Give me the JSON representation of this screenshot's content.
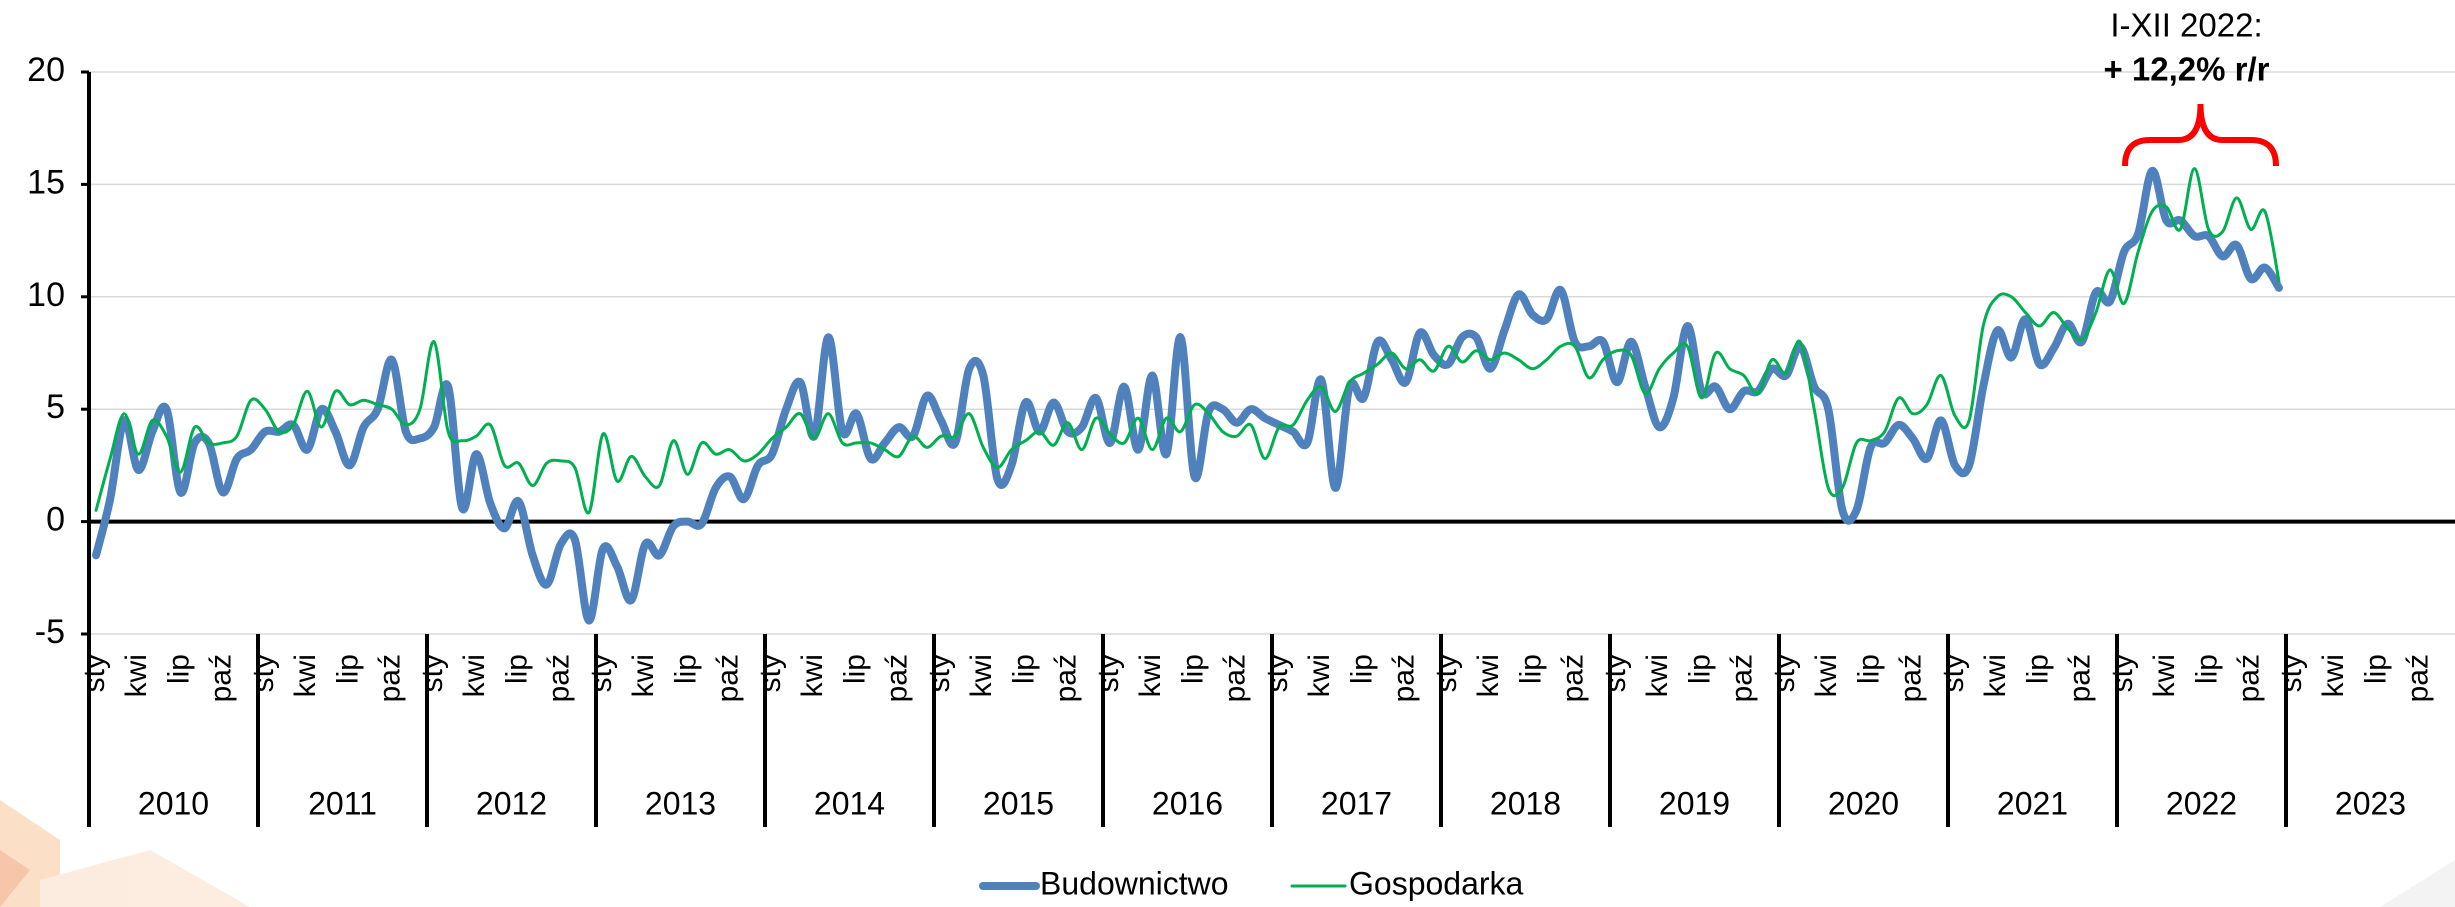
{
  "chart_data": {
    "type": "line",
    "categories": [
      "sty",
      null,
      null,
      "kwi",
      null,
      null,
      "lip",
      null,
      null,
      "paź",
      null,
      null,
      "sty",
      null,
      null,
      "kwi",
      null,
      null,
      "lip",
      null,
      null,
      "paź",
      null,
      null,
      "sty",
      null,
      null,
      "kwi",
      null,
      null,
      "lip",
      null,
      null,
      "paź",
      null,
      null,
      "sty",
      null,
      null,
      "kwi",
      null,
      null,
      "lip",
      null,
      null,
      "paź",
      null,
      null,
      "sty",
      null,
      null,
      "kwi",
      null,
      null,
      "lip",
      null,
      null,
      "paź",
      null,
      null,
      "sty",
      null,
      null,
      "kwi",
      null,
      null,
      "lip",
      null,
      null,
      "paź",
      null,
      null,
      "sty",
      null,
      null,
      "kwi",
      null,
      null,
      "lip",
      null,
      null,
      "paź",
      null,
      null,
      "sty",
      null,
      null,
      "kwi",
      null,
      null,
      "lip",
      null,
      null,
      "paź",
      null,
      null,
      "sty",
      null,
      null,
      "kwi",
      null,
      null,
      "lip",
      null,
      null,
      "paź",
      null,
      null,
      "sty",
      null,
      null,
      "kwi",
      null,
      null,
      "lip",
      null,
      null,
      "paź",
      null,
      null,
      "sty",
      null,
      null,
      "kwi",
      null,
      null,
      "lip",
      null,
      null,
      "paź",
      null,
      null,
      "sty",
      null,
      null,
      "kwi",
      null,
      null,
      "lip",
      null,
      null,
      "paź",
      null,
      null,
      "sty",
      null,
      null,
      "kwi",
      null,
      null,
      "lip",
      null,
      null,
      "paź",
      null,
      null,
      "sty",
      null,
      null,
      "kwi",
      null,
      null,
      "lip",
      null,
      null,
      "paź",
      null,
      null
    ],
    "years": [
      "2010",
      "2011",
      "2012",
      "2013",
      "2014",
      "2015",
      "2016",
      "2017",
      "2018",
      "2019",
      "2020",
      "2021",
      "2022",
      "2023"
    ],
    "series": [
      {
        "name": "Budownictwo",
        "color": "#4f81bd",
        "values": [
          -1.5,
          1,
          4.5,
          2.3,
          4,
          5,
          1.3,
          3.5,
          3.5,
          1.3,
          2.8,
          3.2,
          4,
          4,
          4.3,
          3.2,
          5,
          4,
          2.5,
          4.2,
          5,
          7.2,
          4,
          3.7,
          4.2,
          6,
          0.6,
          3,
          0.8,
          -0.3,
          0.9,
          -1.5,
          -2.8,
          -1,
          -0.8,
          -4.4,
          -1.2,
          -2,
          -3.5,
          -1,
          -1.5,
          -0.2,
          0,
          -0.1,
          1.5,
          2,
          1,
          2.5,
          3,
          5,
          6.2,
          3.8,
          8.2,
          4,
          4.8,
          2.8,
          3.5,
          4.2,
          3.8,
          5.6,
          4.5,
          3.5,
          6.8,
          6.5,
          1.9,
          2.5,
          5.3,
          4,
          5.3,
          4,
          4.2,
          5.5,
          3.5,
          6,
          3.2,
          6.5,
          3,
          8.2,
          2,
          4.9,
          5,
          4.4,
          5,
          4.6,
          4.3,
          4,
          3.5,
          6.3,
          1.5,
          6,
          5.5,
          8,
          7.2,
          6.2,
          8.4,
          7.4,
          7,
          8.2,
          8.2,
          6.8,
          8.5,
          10.1,
          9.2,
          9,
          10.3,
          8,
          7.8,
          8,
          6.2,
          8,
          6,
          4.2,
          5.5,
          8.7,
          5.8,
          6,
          5,
          5.8,
          5.8,
          6.8,
          6.5,
          7.8,
          6,
          5,
          0.5,
          0.5,
          3.3,
          3.5,
          4.3,
          3.7,
          2.8,
          4.5,
          2.5,
          2.5,
          6,
          8.5,
          7.3,
          9,
          7,
          7.7,
          8.8,
          8,
          10.2,
          9.8,
          12,
          12.8,
          15.6,
          13.4,
          13.4,
          12.7,
          12.7,
          11.8,
          12.3,
          10.8,
          11.3,
          10.4,
          null,
          null,
          null,
          null,
          null,
          null,
          null,
          null,
          null,
          null,
          null,
          null
        ]
      },
      {
        "name": "Gospodarka",
        "color": "#00b050",
        "values": [
          0.5,
          2.8,
          4.8,
          3,
          4.5,
          3.8,
          2.2,
          4.2,
          3.5,
          3.5,
          3.8,
          5.4,
          5,
          4,
          4.3,
          5.8,
          4.2,
          5.8,
          5.2,
          5.4,
          5.2,
          5,
          4.3,
          5,
          8,
          4,
          3.6,
          3.8,
          4.3,
          2.5,
          2.6,
          1.6,
          2.6,
          2.7,
          2.4,
          0.4,
          3.9,
          1.8,
          2.9,
          2,
          1.6,
          3.6,
          2.1,
          3.5,
          3,
          3.2,
          2.7,
          3,
          3.7,
          4.2,
          4.8,
          3.7,
          4.8,
          3.5,
          3.5,
          3.5,
          3.2,
          2.9,
          3.8,
          3.3,
          3.8,
          3.8,
          4.8,
          3.3,
          2.4,
          3.2,
          3.6,
          4,
          3.4,
          4.4,
          3.2,
          4.6,
          3.9,
          3.5,
          4.6,
          3.2,
          4.6,
          4,
          5.2,
          4.8,
          4,
          3.8,
          4.3,
          2.8,
          4.2,
          4.3,
          5.4,
          6,
          4.9,
          6.2,
          6.6,
          7,
          7.5,
          6.8,
          7.2,
          6.7,
          7.8,
          7.1,
          7.6,
          7.2,
          7.5,
          7.2,
          6.8,
          7.2,
          7.8,
          7.8,
          6.4,
          7.2,
          7.6,
          7.4,
          5.7,
          6.8,
          7.5,
          7.8,
          5.5,
          7.5,
          6.8,
          6.5,
          5.7,
          7.2,
          6.6,
          8,
          5,
          1.5,
          1.5,
          3.5,
          3.6,
          4,
          5.5,
          4.8,
          5.2,
          6.5,
          4.7,
          4.5,
          8.7,
          10,
          10,
          9.3,
          8.7,
          9.3,
          8.6,
          8.1,
          9.3,
          11.2,
          9.7,
          12,
          13.8,
          14,
          13,
          15.7,
          13,
          12.9,
          14.4,
          13,
          13.8,
          10.7,
          null,
          null,
          null,
          null,
          null,
          null,
          null,
          null,
          null,
          null,
          null,
          null
        ]
      }
    ],
    "ylim": [
      -5,
      20
    ],
    "yticks": [
      -5,
      0,
      5,
      10,
      15,
      20
    ],
    "grid": true,
    "annotations": [
      "I-XII 2022:",
      "+ 12,2% r/r"
    ],
    "annotation_color": "#ff0000",
    "legend": "bottom"
  }
}
